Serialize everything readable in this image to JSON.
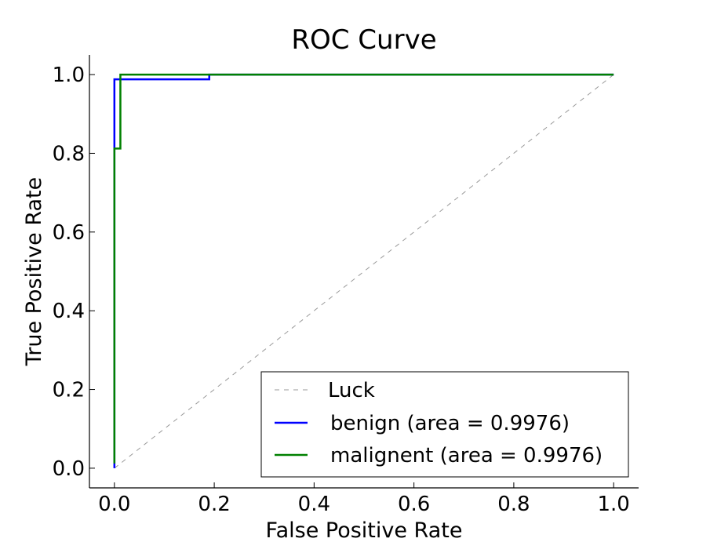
{
  "chart_data": {
    "type": "line",
    "title": "ROC Curve",
    "xlabel": "False Positive Rate",
    "ylabel": "True Positive Rate",
    "xlim": [
      -0.05,
      1.05
    ],
    "ylim": [
      -0.05,
      1.05
    ],
    "x_ticks": [
      0.0,
      0.2,
      0.4,
      0.6,
      0.8,
      1.0
    ],
    "y_ticks": [
      0.0,
      0.2,
      0.4,
      0.6,
      0.8,
      1.0
    ],
    "x_tick_labels": [
      "0.0",
      "0.2",
      "0.4",
      "0.6",
      "0.8",
      "1.0"
    ],
    "y_tick_labels": [
      "0.0",
      "0.2",
      "0.4",
      "0.6",
      "0.8",
      "1.0"
    ],
    "grid": false,
    "legend_position": "lower-right",
    "series": [
      {
        "name": "Luck",
        "color": "#999999",
        "style": "dashed",
        "x": [
          0.0,
          1.0
        ],
        "y": [
          0.0,
          1.0
        ]
      },
      {
        "name": "benign (area = 0.9976)",
        "color": "#0000ff",
        "style": "solid",
        "x": [
          0.0,
          0.0,
          0.0,
          0.19,
          0.19,
          1.0
        ],
        "y": [
          0.0,
          0.81,
          0.988,
          0.988,
          1.0,
          1.0
        ]
      },
      {
        "name": "malignent (area = 0.9976)",
        "color": "#008000",
        "style": "solid",
        "x": [
          0.0,
          0.0,
          0.012,
          0.012,
          1.0
        ],
        "y": [
          0.012,
          0.812,
          0.812,
          1.0,
          1.0
        ]
      }
    ]
  }
}
